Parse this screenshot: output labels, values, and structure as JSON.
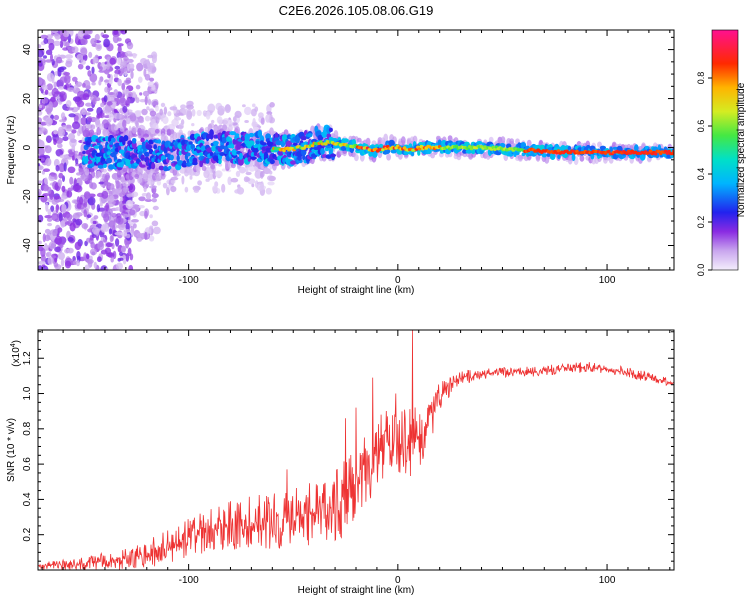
{
  "page_title": "C2E6.2026.105.08.06.G19",
  "colors": {
    "snr_line": "#ee3333",
    "axis": "#000000"
  },
  "chart_data": [
    {
      "id": "spectrogram",
      "type": "heatmap",
      "title": "C2E6.2026.105.08.06.G19",
      "xlabel": "Height of straight line (km)",
      "ylabel": "Frequency (Hz)",
      "xlim": [
        -172,
        132
      ],
      "ylim": [
        -50,
        48
      ],
      "xticks": [
        -100,
        0,
        100
      ],
      "xtick_labels": [
        "-100",
        "0",
        "100"
      ],
      "yticks": [
        -40,
        -20,
        0,
        20,
        40
      ],
      "ytick_labels": [
        "-40",
        "-20",
        "0",
        "20",
        "40"
      ],
      "grid": false,
      "ridge": {
        "x": [
          -130,
          -110,
          -90,
          -70,
          -55,
          -45,
          -38,
          -32,
          -25,
          -18,
          -10,
          -5,
          0,
          5,
          12,
          20,
          40,
          60,
          80,
          100,
          120,
          132
        ],
        "y": [
          -2,
          -3,
          0,
          0,
          -1,
          0,
          2,
          2,
          1,
          0,
          -1,
          0,
          0,
          -1,
          0,
          0,
          0,
          -1,
          -2,
          -2,
          -2,
          -2
        ]
      },
      "colorbar": {
        "label": "Normalized spectral amplitude",
        "range": [
          0,
          1
        ],
        "ticks": [
          0.0,
          0.2,
          0.4,
          0.6,
          0.8
        ],
        "tick_labels": [
          "0.0",
          "0.2",
          "0.4",
          "0.6",
          "0.8"
        ],
        "stops": [
          {
            "v": 0.0,
            "c": "#f4eefc"
          },
          {
            "v": 0.08,
            "c": "#c9a6ee"
          },
          {
            "v": 0.16,
            "c": "#8a2be2"
          },
          {
            "v": 0.24,
            "c": "#2222ee"
          },
          {
            "v": 0.36,
            "c": "#00b4ff"
          },
          {
            "v": 0.46,
            "c": "#00e0c8"
          },
          {
            "v": 0.56,
            "c": "#44e844"
          },
          {
            "v": 0.66,
            "c": "#d4ec22"
          },
          {
            "v": 0.76,
            "c": "#ffb400"
          },
          {
            "v": 0.86,
            "c": "#ff2a00"
          },
          {
            "v": 1.0,
            "c": "#ff1090"
          }
        ]
      }
    },
    {
      "id": "snr",
      "type": "line",
      "title": "",
      "xlabel": "Height of straight line (km)",
      "ylabel": "SNR (10 * v/v)",
      "scale_label": "(x10",
      "scale_exp": "4",
      "scale_close": ")",
      "xlim": [
        -172,
        132
      ],
      "ylim": [
        0.0,
        1.36
      ],
      "xticks": [
        -100,
        0,
        100
      ],
      "xtick_labels": [
        "-100",
        "0",
        "100"
      ],
      "yticks": [
        0.2,
        0.4,
        0.6,
        0.8,
        1.0,
        1.2
      ],
      "ytick_labels": [
        "0.2",
        "0.4",
        "0.6",
        "0.8",
        "1.0",
        "1.2"
      ],
      "grid": false,
      "series": [
        {
          "name": "SNR",
          "x": [
            -172,
            -160,
            -150,
            -140,
            -130,
            -120,
            -110,
            -100,
            -90,
            -80,
            -70,
            -60,
            -50,
            -40,
            -30,
            -25,
            -20,
            -15,
            -10,
            -5,
            0,
            5,
            8,
            10,
            15,
            20,
            25,
            30,
            40,
            50,
            60,
            70,
            80,
            90,
            100,
            110,
            120,
            132
          ],
          "y": [
            0.02,
            0.03,
            0.04,
            0.05,
            0.06,
            0.09,
            0.13,
            0.18,
            0.22,
            0.25,
            0.27,
            0.28,
            0.3,
            0.32,
            0.36,
            0.42,
            0.55,
            0.62,
            0.66,
            0.72,
            0.74,
            0.72,
            0.8,
            0.72,
            0.86,
            0.96,
            1.05,
            1.09,
            1.11,
            1.12,
            1.12,
            1.13,
            1.14,
            1.15,
            1.14,
            1.12,
            1.09,
            1.06
          ],
          "spread": [
            0.02,
            0.03,
            0.04,
            0.05,
            0.06,
            0.08,
            0.1,
            0.11,
            0.13,
            0.14,
            0.15,
            0.16,
            0.17,
            0.18,
            0.2,
            0.22,
            0.25,
            0.24,
            0.22,
            0.22,
            0.2,
            0.18,
            0.3,
            0.17,
            0.14,
            0.1,
            0.06,
            0.04,
            0.03,
            0.03,
            0.03,
            0.03,
            0.03,
            0.03,
            0.03,
            0.03,
            0.03,
            0.02
          ],
          "spikes": [
            {
              "x": -53,
              "y": 0.57
            },
            {
              "x": -25,
              "y": 0.86
            },
            {
              "x": -20,
              "y": 0.92
            },
            {
              "x": -12,
              "y": 1.09
            },
            {
              "x": -1,
              "y": 1.0
            },
            {
              "x": 7,
              "y": 1.37
            },
            {
              "x": 19,
              "y": 1.02
            }
          ]
        }
      ]
    }
  ]
}
